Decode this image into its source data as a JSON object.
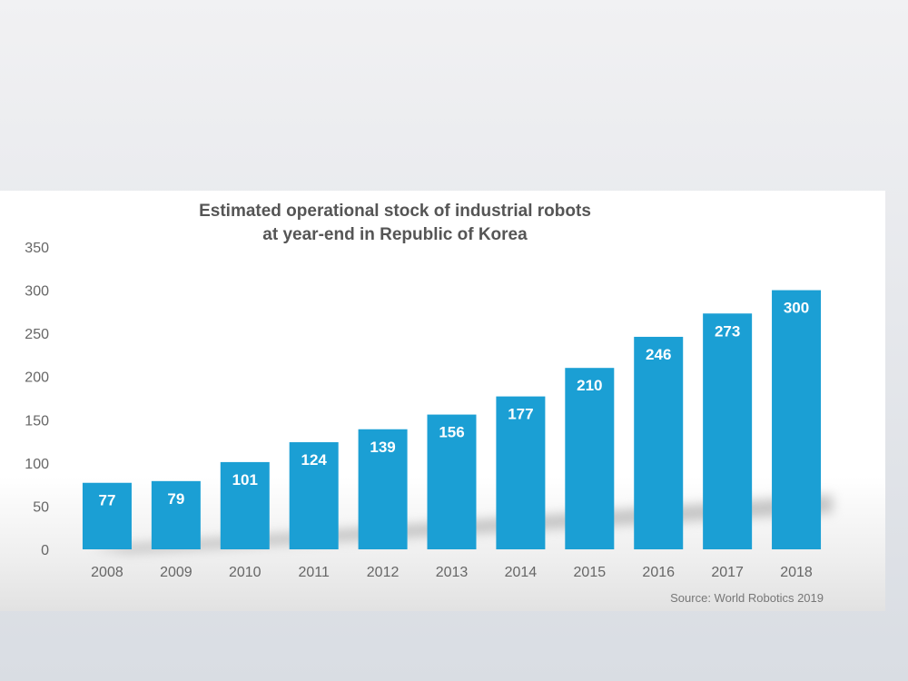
{
  "chart_data": {
    "type": "bar",
    "title_lines": [
      "Estimated operational stock of industrial robots",
      "at year-end in Republic of Korea"
    ],
    "categories": [
      "2008",
      "2009",
      "2010",
      "2011",
      "2012",
      "2013",
      "2014",
      "2015",
      "2016",
      "2017",
      "2018"
    ],
    "values": [
      77,
      79,
      101,
      124,
      139,
      156,
      177,
      210,
      246,
      273,
      300
    ],
    "ylim": [
      0,
      350
    ],
    "yticks": [
      0,
      50,
      100,
      150,
      200,
      250,
      300,
      350
    ],
    "xlabel": "",
    "ylabel": "",
    "grid": false,
    "legend": "none",
    "data_labels": true,
    "source": "Source: World Robotics 2019",
    "colors": {
      "bar": "#1b9fd4",
      "bar_label": "#ffffff",
      "axis_text": "#666666",
      "title": "#555555"
    }
  }
}
